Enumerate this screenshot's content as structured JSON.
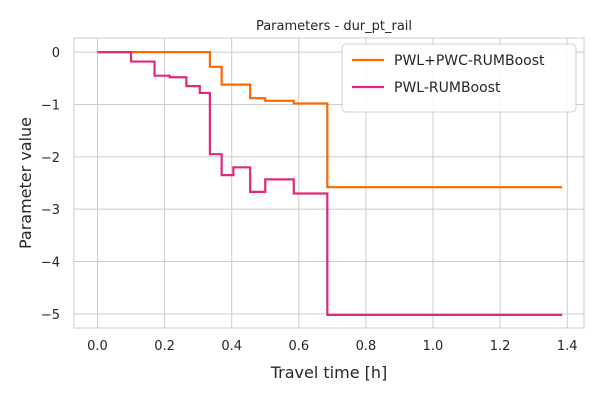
{
  "chart_data": {
    "type": "line",
    "title": "Parameters - dur_pt_rail",
    "xlabel": "Travel time [h]",
    "ylabel": "Parameter value",
    "xlim": [
      -0.07,
      1.45
    ],
    "ylim": [
      -5.27,
      0.27
    ],
    "xticks": [
      0.0,
      0.2,
      0.4,
      0.6,
      0.8,
      1.0,
      1.2,
      1.4
    ],
    "xtick_labels": [
      "0.0",
      "0.2",
      "0.4",
      "0.6",
      "0.8",
      "1.0",
      "1.2",
      "1.4"
    ],
    "yticks": [
      0,
      -1,
      -2,
      -3,
      -4,
      -5
    ],
    "ytick_labels": [
      "0",
      "−1",
      "−2",
      "−3",
      "−4",
      "−5"
    ],
    "grid": true,
    "legend_position": "top-right",
    "series": [
      {
        "name": "PWL+PWC-RUMBoost",
        "color": "#ff6600",
        "step": true,
        "x": [
          0.0,
          0.335,
          0.37,
          0.455,
          0.5,
          0.585,
          0.685,
          1.385
        ],
        "y": [
          0.0,
          -0.28,
          -0.62,
          -0.88,
          -0.93,
          -0.98,
          -2.58,
          -2.58
        ]
      },
      {
        "name": "PWL-RUMBoost",
        "color": "#dd2a7b",
        "step": true,
        "x": [
          0.0,
          0.1,
          0.17,
          0.215,
          0.265,
          0.305,
          0.335,
          0.37,
          0.405,
          0.455,
          0.5,
          0.585,
          0.685,
          1.385
        ],
        "y": [
          0.0,
          -0.18,
          -0.45,
          -0.48,
          -0.65,
          -0.78,
          -1.95,
          -2.35,
          -2.2,
          -2.67,
          -2.43,
          -2.7,
          -5.02,
          -5.02
        ]
      }
    ]
  }
}
